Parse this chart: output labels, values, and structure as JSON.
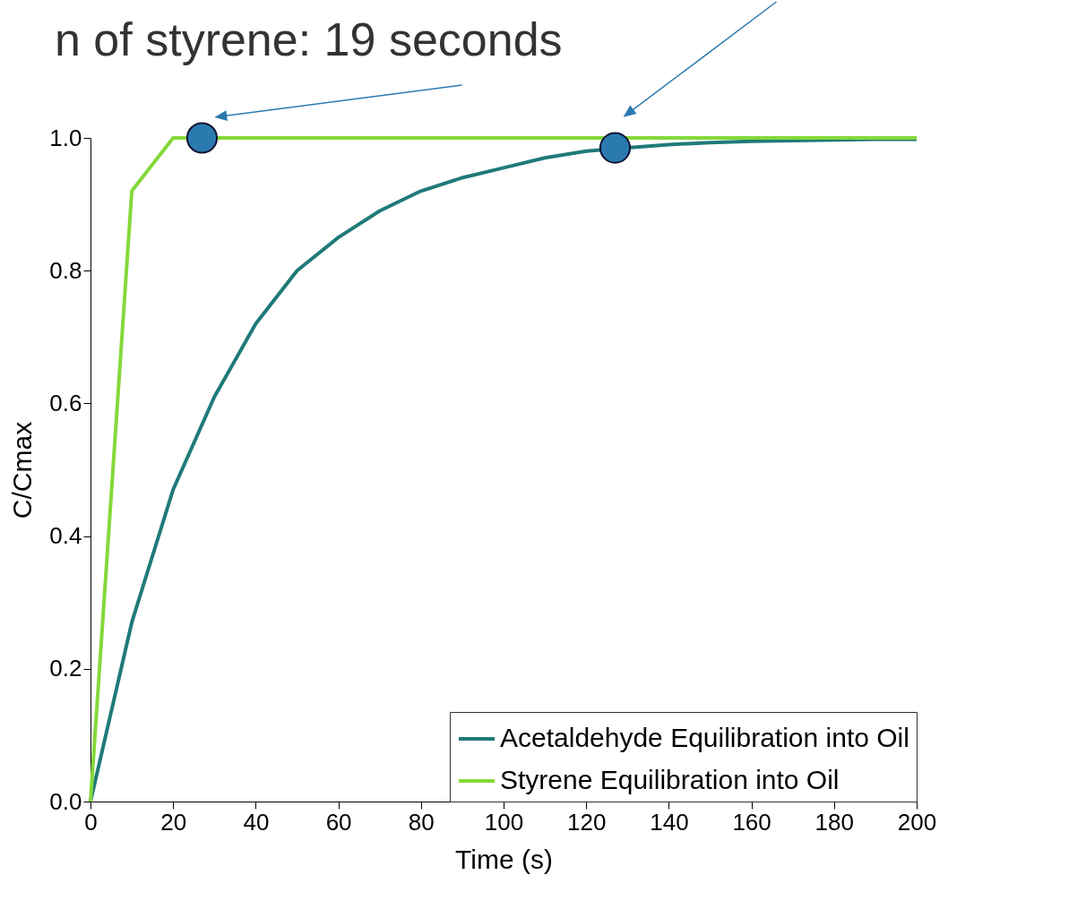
{
  "chart_data": {
    "type": "line",
    "title": "n of styrene: 19 seconds",
    "xlabel": "Time (s)",
    "ylabel": "C/Cmax",
    "xlim": [
      0,
      200
    ],
    "xticks": [
      0,
      20,
      40,
      60,
      80,
      100,
      120,
      140,
      160,
      180,
      200
    ],
    "ylim": [
      0,
      1.0
    ],
    "yticks": [
      {
        "value": 0,
        "label": "0.0"
      },
      0.2,
      0.4,
      0.6,
      0.8,
      {
        "value": 1,
        "label": "1.0"
      }
    ],
    "grid": false,
    "legend": "bottom right",
    "series": [
      {
        "name": "Acetaldehyde Equilibration into Oil",
        "color": "#1f7a78",
        "x": [
          0,
          10,
          20,
          30,
          40,
          50,
          60,
          70,
          80,
          90,
          100,
          110,
          120,
          130,
          140,
          150,
          160,
          170,
          180,
          190,
          200
        ],
        "values": [
          0,
          0.27,
          0.47,
          0.61,
          0.72,
          0.8,
          0.85,
          0.89,
          0.92,
          0.94,
          0.955,
          0.97,
          0.98,
          0.985,
          0.99,
          0.993,
          0.995,
          0.996,
          0.997,
          0.998,
          0.998
        ]
      },
      {
        "name": "Styrene Equilibration into Oil",
        "color": "#84d93a",
        "x": [
          0,
          10,
          20,
          200
        ],
        "values": [
          0,
          0.92,
          1.0,
          1.0
        ]
      },
      {
        "type": "scatter",
        "color": "#2a7ab0",
        "marker": "circle",
        "x": [
          27,
          127
        ],
        "values": [
          1.0,
          0.985
        ]
      }
    ]
  }
}
